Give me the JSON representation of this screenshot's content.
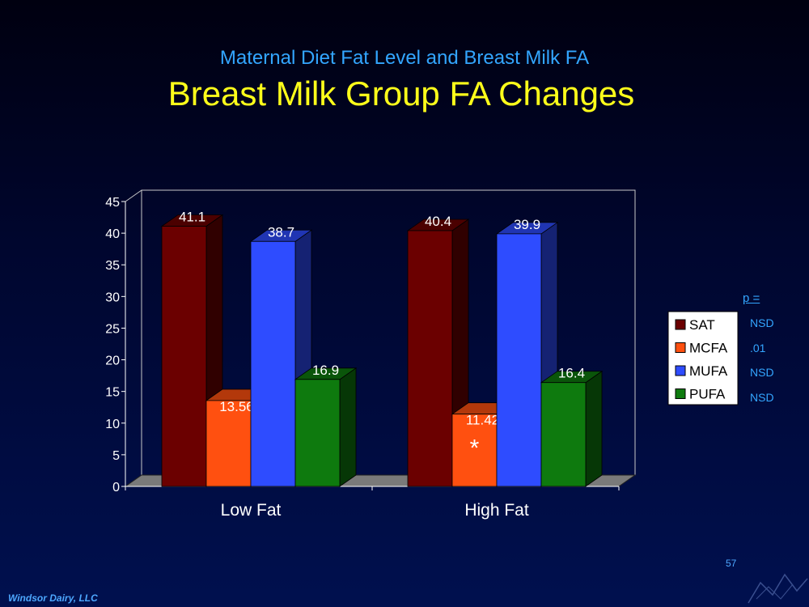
{
  "slide": {
    "subtitle": "Maternal Diet Fat Level and Breast Milk FA",
    "title": "Breast Milk Group FA Changes",
    "footer": "Windsor Dairy, LLC",
    "slide_number": "57",
    "significance_marker": "*"
  },
  "p_values": {
    "label": "p =",
    "values": [
      "NSD",
      ".01",
      "NSD",
      "NSD"
    ]
  },
  "colors": {
    "background": "#00104f",
    "title": "#ffff1a",
    "subtitle": "#33a6ff",
    "SAT": "#6b0000",
    "MCFA": "#ff5010",
    "MUFA": "#2e4cff",
    "PUFA": "#0e7a0e"
  },
  "chart_data": {
    "type": "bar",
    "style": "3d-clustered",
    "categories": [
      "Low Fat",
      "High Fat"
    ],
    "series": [
      {
        "name": "SAT",
        "values": [
          41.1,
          40.4
        ],
        "labels": [
          "41.1",
          "40.4"
        ]
      },
      {
        "name": "MCFA",
        "values": [
          13.56,
          11.42
        ],
        "labels": [
          "13.56",
          "11.42"
        ]
      },
      {
        "name": "MUFA",
        "values": [
          38.7,
          39.9
        ],
        "labels": [
          "38.7",
          "39.9"
        ]
      },
      {
        "name": "PUFA",
        "values": [
          16.9,
          16.4
        ],
        "labels": [
          "16.9",
          "16.4"
        ]
      }
    ],
    "title": "Breast Milk Group FA Changes",
    "xlabel": "",
    "ylabel": "",
    "ylim": [
      0,
      45
    ],
    "yticks": [
      0,
      5,
      10,
      15,
      20,
      25,
      30,
      35,
      40,
      45
    ],
    "grid": false,
    "legend": "right"
  }
}
